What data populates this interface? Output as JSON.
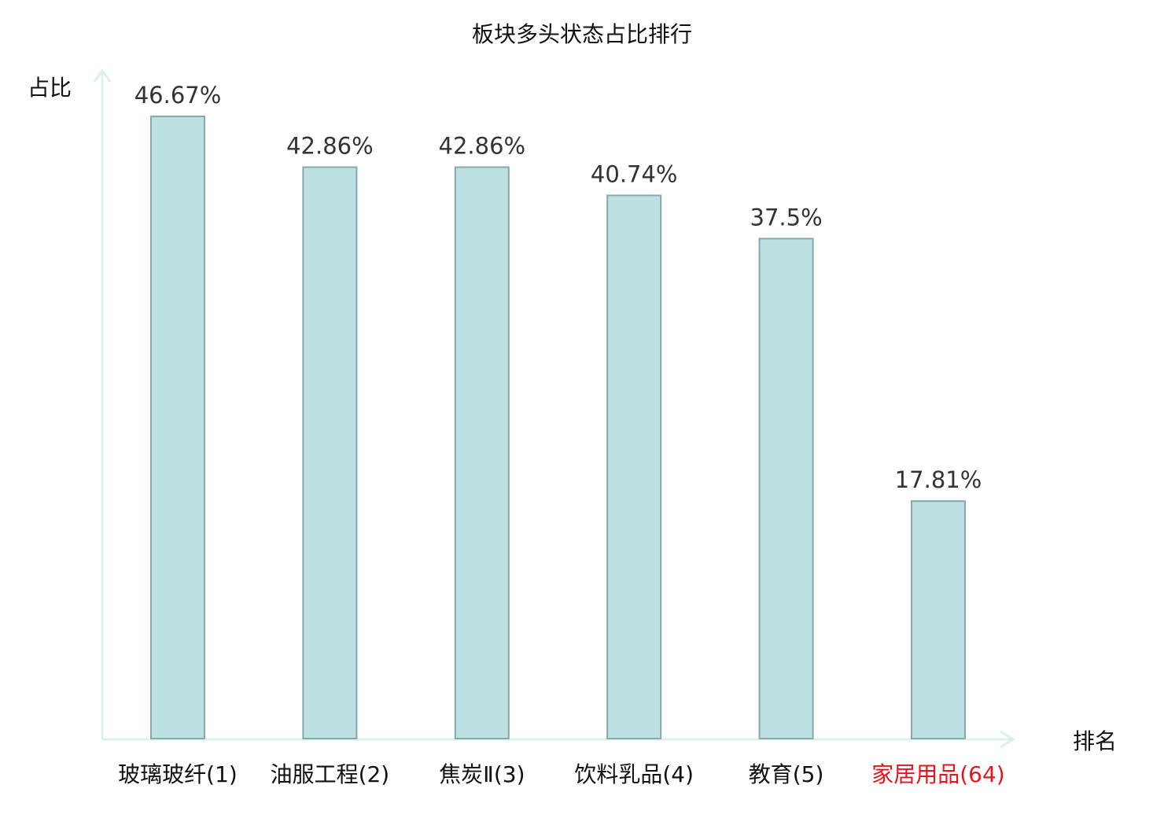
{
  "chart_data": {
    "type": "bar",
    "title": "板块多头状态占比排行",
    "xlabel": "排名",
    "ylabel": "占比",
    "categories": [
      "玻璃玻纤(1)",
      "油服工程(2)",
      "焦炭Ⅱ(3)",
      "饮料乳品(4)",
      "教育(5)",
      "家居用品(64)"
    ],
    "values": [
      46.67,
      42.86,
      42.86,
      40.74,
      37.5,
      17.81
    ],
    "data_labels": [
      "46.67%",
      "42.86%",
      "42.86%",
      "40.74%",
      "37.5%",
      "17.81%"
    ],
    "highlighted_category": "家居用品(64)",
    "ylim": [
      0,
      50
    ],
    "grid": false,
    "legend": "none",
    "colors": {
      "bar_fill": "#bde0e3",
      "bar_stroke": "#88a9a9",
      "axis": "#dcf0ee",
      "highlight_label": "#e8141c",
      "label": "#111111",
      "value_label": "#333333"
    }
  }
}
